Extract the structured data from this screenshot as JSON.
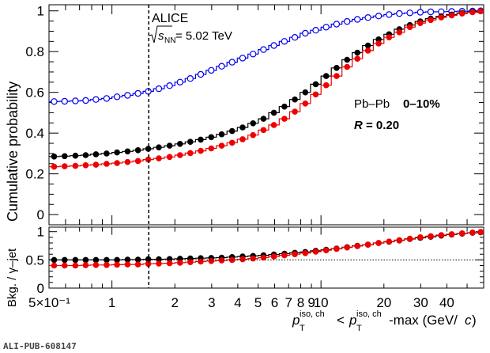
{
  "pub_id": "ALI-PUB-608147",
  "chart_data": [
    {
      "type": "step-line",
      "panel": "cumulative",
      "ylabel": "Cumulative probability",
      "ylim": [
        -0.05,
        1.03
      ],
      "xscale": "log",
      "xlim": [
        0.5,
        60
      ],
      "yticks": [
        "0",
        "0.2",
        "0.4",
        "0.6",
        "0.8",
        "1"
      ],
      "annotations": {
        "experiment": "ALICE",
        "energy_prefix": "s",
        "energy_sub": "NN",
        "energy_value": "= 5.02 TeV",
        "system": "Pb–Pb",
        "centrality": "0–10%",
        "radius_var": "R",
        "radius_value": "= 0.20"
      },
      "vertical_line_x": 1.5,
      "bin_edges": [
        0.5,
        0.56,
        0.63,
        0.71,
        0.79,
        0.89,
        1.0,
        1.12,
        1.26,
        1.41,
        1.58,
        1.78,
        2.0,
        2.24,
        2.51,
        2.82,
        3.16,
        3.55,
        3.98,
        4.47,
        5.01,
        5.62,
        6.31,
        7.08,
        7.94,
        8.91,
        10.0,
        11.2,
        12.6,
        14.1,
        15.8,
        17.8,
        20.0,
        22.4,
        25.1,
        28.2,
        31.6,
        35.5,
        39.8,
        44.7,
        50.1,
        56.2,
        60.0
      ],
      "series": [
        {
          "color": "#0000ee",
          "marker": "open-circle",
          "values": [
            0.555,
            0.556,
            0.558,
            0.56,
            0.565,
            0.57,
            0.578,
            0.585,
            0.595,
            0.605,
            0.618,
            0.633,
            0.65,
            0.668,
            0.688,
            0.708,
            0.728,
            0.748,
            0.768,
            0.788,
            0.81,
            0.83,
            0.85,
            0.87,
            0.89,
            0.905,
            0.92,
            0.935,
            0.948,
            0.958,
            0.967,
            0.975,
            0.982,
            0.987,
            0.99,
            0.993,
            0.995,
            0.996,
            0.997,
            0.998,
            0.999,
            1.0
          ]
        },
        {
          "color": "#000000",
          "marker": "filled-circle",
          "values": [
            0.285,
            0.287,
            0.289,
            0.292,
            0.296,
            0.3,
            0.305,
            0.31,
            0.316,
            0.323,
            0.33,
            0.338,
            0.347,
            0.357,
            0.368,
            0.38,
            0.394,
            0.41,
            0.428,
            0.448,
            0.47,
            0.5,
            0.53,
            0.565,
            0.6,
            0.64,
            0.68,
            0.72,
            0.76,
            0.795,
            0.83,
            0.86,
            0.885,
            0.91,
            0.93,
            0.948,
            0.962,
            0.973,
            0.982,
            0.99,
            0.995,
            0.998
          ]
        },
        {
          "color": "#ee0000",
          "marker": "filled-circle",
          "values": [
            0.235,
            0.237,
            0.239,
            0.242,
            0.245,
            0.249,
            0.253,
            0.258,
            0.263,
            0.27,
            0.276,
            0.283,
            0.292,
            0.302,
            0.313,
            0.325,
            0.338,
            0.353,
            0.37,
            0.39,
            0.415,
            0.44,
            0.47,
            0.505,
            0.545,
            0.59,
            0.635,
            0.68,
            0.725,
            0.765,
            0.805,
            0.84,
            0.87,
            0.895,
            0.92,
            0.94,
            0.955,
            0.968,
            0.978,
            0.987,
            0.993,
            0.998
          ]
        }
      ]
    },
    {
      "type": "step-line",
      "panel": "ratio",
      "ylabel": "Bkg. / γ–jet",
      "ylim": [
        0,
        1.08
      ],
      "yticks": [
        "0",
        "0.5",
        "1"
      ],
      "reference_line_y": 0.5,
      "xlabel_base": "p",
      "xlabel_sub": "T",
      "xlabel_sup": "iso, ch",
      "xlabel_mid": "<",
      "xlabel_tail": "-max (GeV/",
      "xlabel_c": "c",
      "xlabel_close": ")",
      "xtick_labels": [
        {
          "x": 0.5,
          "label": "5×10⁻¹"
        },
        {
          "x": 1,
          "label": "1"
        },
        {
          "x": 2,
          "label": "2"
        },
        {
          "x": 3,
          "label": "3"
        },
        {
          "x": 4,
          "label": "4"
        },
        {
          "x": 5,
          "label": "5"
        },
        {
          "x": 6,
          "label": "6"
        },
        {
          "x": 7,
          "label": "7"
        },
        {
          "x": 8,
          "label": "8"
        },
        {
          "x": 9,
          "label": "9"
        },
        {
          "x": 10,
          "label": "10"
        },
        {
          "x": 20,
          "label": "20"
        },
        {
          "x": 30,
          "label": "30"
        },
        {
          "x": 40,
          "label": "40"
        }
      ],
      "series": [
        {
          "color": "#000000",
          "marker": "filled-circle",
          "values": [
            0.5,
            0.5,
            0.5,
            0.5,
            0.5,
            0.5,
            0.5,
            0.505,
            0.505,
            0.51,
            0.51,
            0.515,
            0.52,
            0.525,
            0.53,
            0.535,
            0.54,
            0.55,
            0.56,
            0.57,
            0.58,
            0.595,
            0.61,
            0.625,
            0.64,
            0.66,
            0.68,
            0.7,
            0.725,
            0.75,
            0.77,
            0.8,
            0.82,
            0.845,
            0.87,
            0.89,
            0.91,
            0.93,
            0.95,
            0.965,
            0.98,
            0.99
          ]
        },
        {
          "color": "#ee0000",
          "marker": "filled-circle",
          "values": [
            0.4,
            0.4,
            0.4,
            0.405,
            0.41,
            0.41,
            0.415,
            0.42,
            0.42,
            0.43,
            0.435,
            0.44,
            0.45,
            0.46,
            0.47,
            0.48,
            0.49,
            0.5,
            0.51,
            0.525,
            0.54,
            0.56,
            0.58,
            0.6,
            0.62,
            0.645,
            0.67,
            0.695,
            0.72,
            0.745,
            0.77,
            0.8,
            0.825,
            0.85,
            0.875,
            0.9,
            0.92,
            0.94,
            0.955,
            0.97,
            0.985,
            0.995
          ]
        }
      ]
    }
  ]
}
